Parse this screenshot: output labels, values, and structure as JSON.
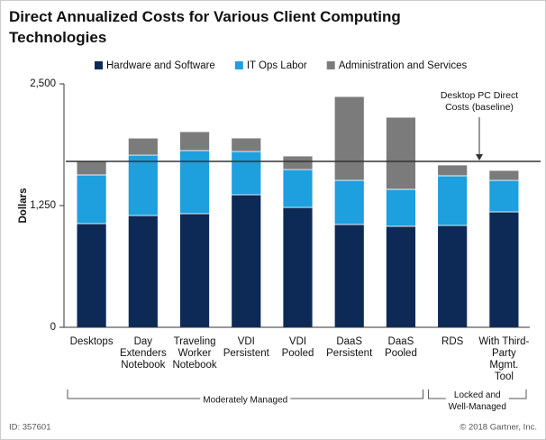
{
  "chart_data": {
    "type": "stacked_bar",
    "title": "Direct Annualized Costs for Various Client Computing\nTechnologies",
    "ylabel": "Dollars",
    "categories": [
      "Desktops",
      "Day\nExtenders\nNotebook",
      "Traveling\nWorker\nNotebook",
      "VDI\nPersistent",
      "VDI\nPooled",
      "DaaS\nPersistent",
      "DaaS\nPooled",
      "RDS",
      "With Third-\nParty\nMgmt.\nTool"
    ],
    "series": [
      {
        "name": "Hardware and Software",
        "color": "#0d2a57",
        "values": [
          1065,
          1148,
          1167,
          1361,
          1231,
          1056,
          1037,
          1046,
          1185
        ]
      },
      {
        "name": "IT Ops Labor",
        "color": "#1e9fde",
        "values": [
          500,
          620,
          648,
          444,
          389,
          453,
          380,
          510,
          324
        ]
      },
      {
        "name": "Administration and Services",
        "color": "#7b7b7b",
        "values": [
          139,
          175,
          194,
          139,
          139,
          861,
          740,
          111,
          102
        ]
      }
    ],
    "ylim": [
      0,
      2500
    ],
    "yticks": [
      0,
      {
        "value": 1250,
        "label": "1,250"
      },
      {
        "value": 2500,
        "label": "2,500"
      }
    ],
    "reference_line": {
      "value": 1704,
      "label": "Desktop PC Direct\nCosts (baseline)"
    },
    "groups": [
      {
        "label": "Moderately Managed",
        "from": 0,
        "to": 6
      },
      {
        "label": "Locked and\nWell-Managed",
        "from": 7,
        "to": 8
      }
    ],
    "footer_left": "ID: 357601",
    "footer_right": "© 2018 Gartner, Inc."
  }
}
